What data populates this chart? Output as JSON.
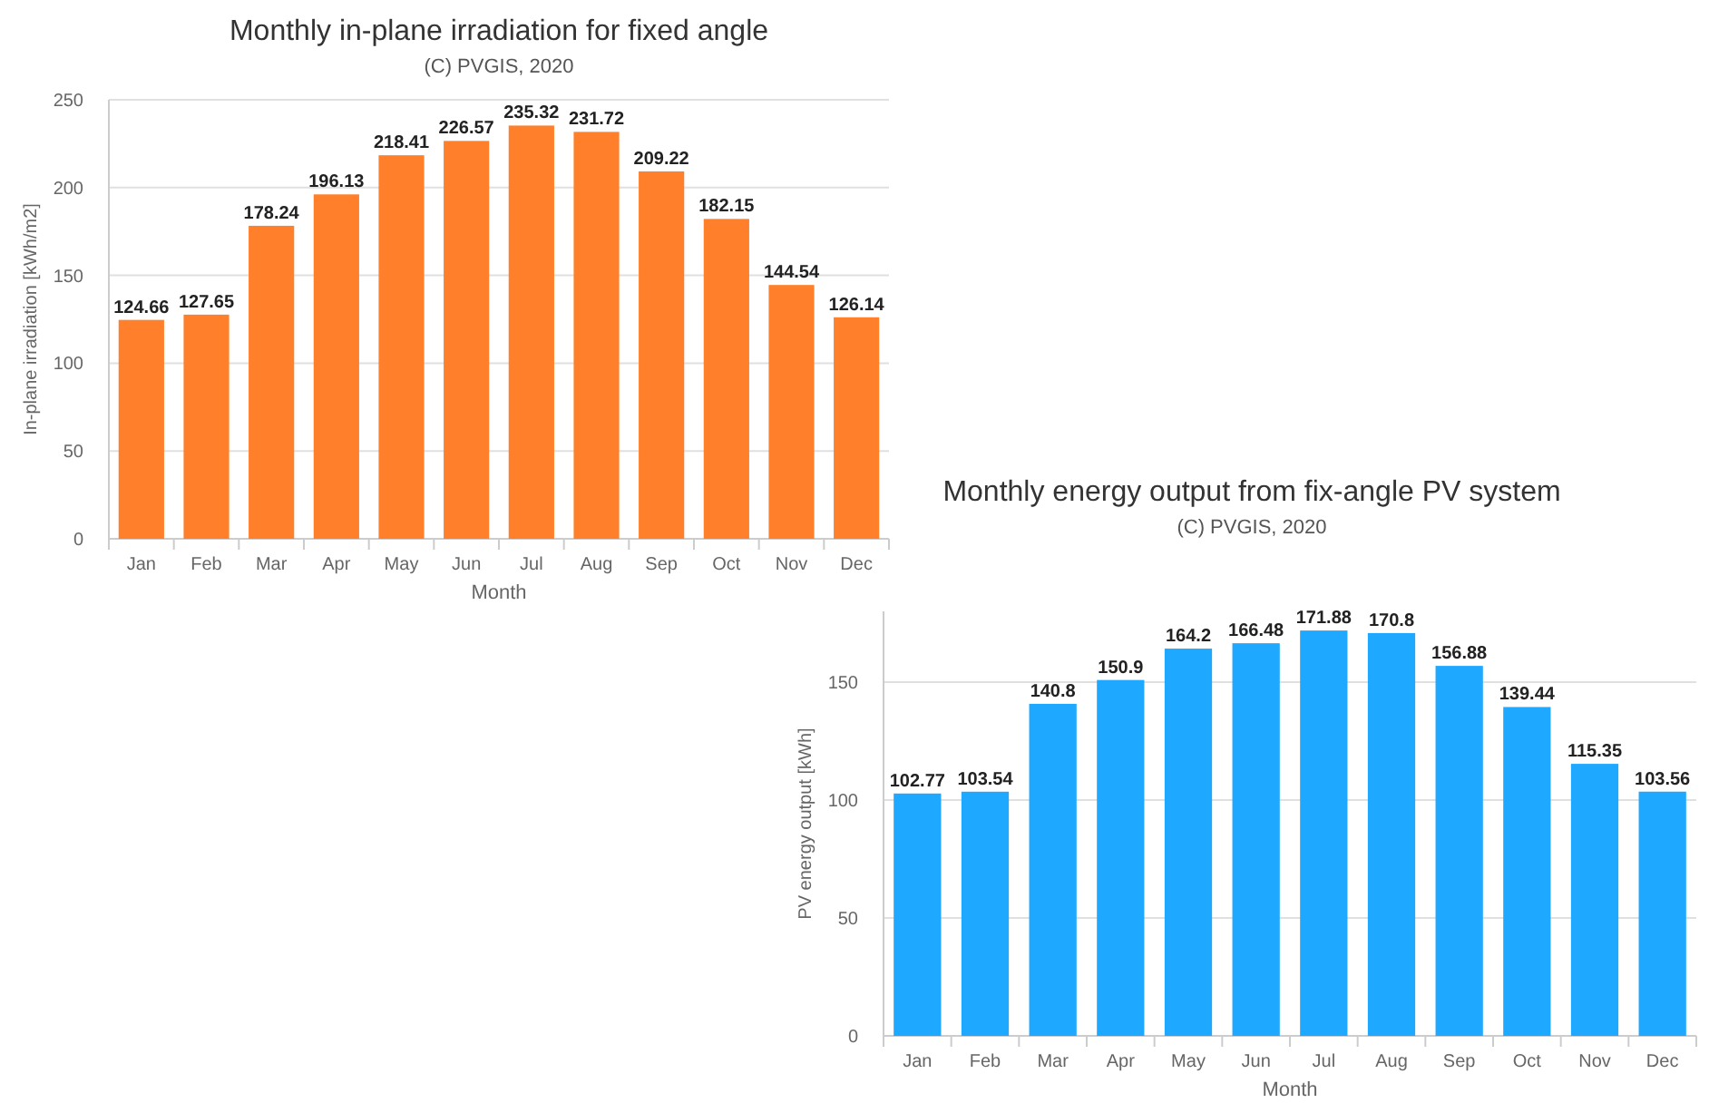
{
  "chart_data": [
    {
      "type": "bar",
      "title": "Monthly in-plane irradiation for fixed angle",
      "subtitle": "(C) PVGIS, 2020",
      "xlabel": "Month",
      "ylabel": "In-plane irradiation [kWh/m2]",
      "categories": [
        "Jan",
        "Feb",
        "Mar",
        "Apr",
        "May",
        "Jun",
        "Jul",
        "Aug",
        "Sep",
        "Oct",
        "Nov",
        "Dec"
      ],
      "values": [
        124.66,
        127.65,
        178.24,
        196.13,
        218.41,
        226.57,
        235.32,
        231.72,
        209.22,
        182.15,
        144.54,
        126.14
      ],
      "color": "#ff7f2a",
      "ylim": [
        0,
        250
      ],
      "yticks": [
        0,
        50,
        100,
        150,
        200,
        250
      ],
      "grid": "y",
      "data_labels": true
    },
    {
      "type": "bar",
      "title": "Monthly energy output from fix-angle PV system",
      "subtitle": "(C) PVGIS, 2020",
      "xlabel": "Month",
      "ylabel": "PV energy output [kWh]",
      "categories": [
        "Jan",
        "Feb",
        "Mar",
        "Apr",
        "May",
        "Jun",
        "Jul",
        "Aug",
        "Sep",
        "Oct",
        "Nov",
        "Dec"
      ],
      "values": [
        102.77,
        103.54,
        140.8,
        150.9,
        164.2,
        166.48,
        171.88,
        170.8,
        156.88,
        139.44,
        115.35,
        103.56
      ],
      "color": "#1fa8ff",
      "ylim": [
        0,
        180
      ],
      "yticks": [
        0,
        50,
        100,
        150
      ],
      "grid": "y",
      "data_labels": true
    }
  ]
}
